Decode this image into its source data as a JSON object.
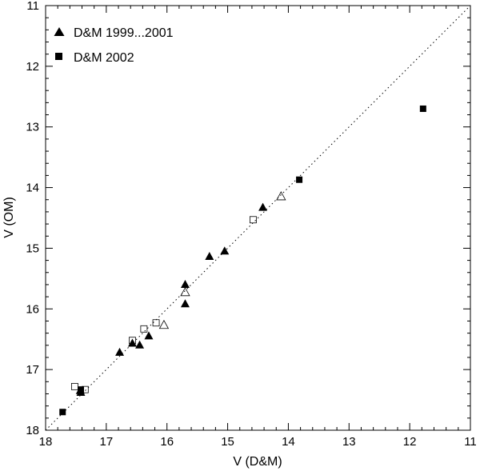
{
  "chart_data": {
    "type": "scatter",
    "xlabel": "V (D&M)",
    "ylabel": "V (OM)",
    "xlim": [
      18,
      11
    ],
    "ylim": [
      18,
      11
    ],
    "x_reversed": true,
    "y_reversed": true,
    "x_ticks": [
      18,
      17,
      16,
      15,
      14,
      13,
      12,
      11
    ],
    "y_ticks": [
      11,
      12,
      13,
      14,
      15,
      16,
      17,
      18
    ],
    "x_tick_labels": [
      "18",
      "17",
      "16",
      "15",
      "14",
      "13",
      "12",
      "11"
    ],
    "y_tick_labels": [
      "11",
      "12",
      "13",
      "14",
      "15",
      "16",
      "17",
      "18"
    ],
    "reference_line": {
      "style": "dotted",
      "relation": "y = x"
    },
    "legend": {
      "placement": "top-left",
      "entries": [
        {
          "label": "D&M 1999...2001",
          "marker": "filled-triangle"
        },
        {
          "label": "D&M 2002",
          "marker": "filled-square"
        }
      ]
    },
    "series": [
      {
        "name": "D&M 1999...2001",
        "marker": "filled-triangle",
        "points": [
          {
            "x": 17.42,
            "y": 17.38
          },
          {
            "x": 17.43,
            "y": 17.35
          },
          {
            "x": 16.78,
            "y": 16.72
          },
          {
            "x": 16.57,
            "y": 16.57
          },
          {
            "x": 16.45,
            "y": 16.6
          },
          {
            "x": 16.3,
            "y": 16.45
          },
          {
            "x": 15.7,
            "y": 15.92
          },
          {
            "x": 15.7,
            "y": 15.6
          },
          {
            "x": 15.3,
            "y": 15.14
          },
          {
            "x": 15.05,
            "y": 15.05
          },
          {
            "x": 14.42,
            "y": 14.33
          }
        ]
      },
      {
        "name": "open-triangle",
        "marker": "open-triangle",
        "points": [
          {
            "x": 16.05,
            "y": 16.27
          },
          {
            "x": 15.7,
            "y": 15.73
          },
          {
            "x": 14.12,
            "y": 14.15
          }
        ]
      },
      {
        "name": "D&M 2002",
        "marker": "filled-square",
        "points": [
          {
            "x": 17.72,
            "y": 17.7
          },
          {
            "x": 17.42,
            "y": 17.33
          },
          {
            "x": 13.82,
            "y": 13.87
          },
          {
            "x": 11.78,
            "y": 12.7
          }
        ]
      },
      {
        "name": "open-square",
        "marker": "open-square",
        "points": [
          {
            "x": 17.52,
            "y": 17.28
          },
          {
            "x": 17.35,
            "y": 17.33
          },
          {
            "x": 16.57,
            "y": 16.52
          },
          {
            "x": 16.38,
            "y": 16.33
          },
          {
            "x": 16.18,
            "y": 16.23
          },
          {
            "x": 14.58,
            "y": 14.53
          }
        ]
      }
    ]
  }
}
